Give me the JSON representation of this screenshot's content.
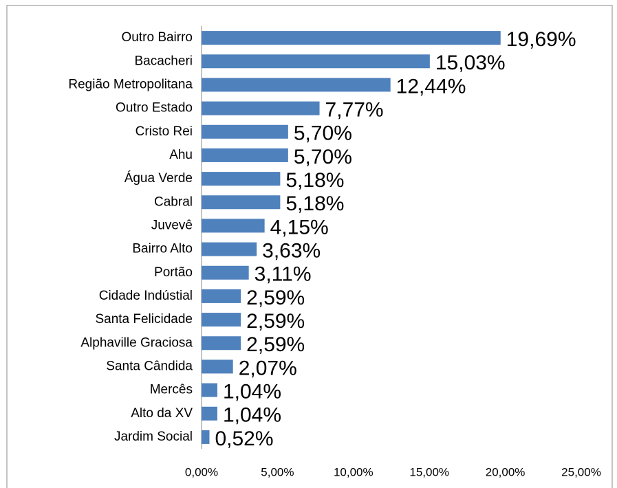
{
  "chart_data": {
    "type": "bar",
    "orientation": "horizontal",
    "color": "#4f81bd",
    "categories": [
      "Outro Bairro",
      "Bacacheri",
      "Região Metropolitana",
      "Outro Estado",
      "Cristo Rei",
      "Ahu",
      "Água Verde",
      "Cabral",
      "Juvevê",
      "Bairro Alto",
      "Portão",
      "Cidade Indústial",
      "Santa Felicidade",
      "Alphaville Graciosa",
      "Santa Cândida",
      "Mercês",
      "Alto da XV",
      "Jardim Social"
    ],
    "values": [
      19.69,
      15.03,
      12.44,
      7.77,
      5.7,
      5.7,
      5.18,
      5.18,
      4.15,
      3.63,
      3.11,
      2.59,
      2.59,
      2.59,
      2.07,
      1.04,
      1.04,
      0.52
    ],
    "value_labels": [
      "19,69%",
      "15,03%",
      "12,44%",
      "7,77%",
      "5,70%",
      "5,70%",
      "5,18%",
      "5,18%",
      "4,15%",
      "3,63%",
      "3,11%",
      "2,59%",
      "2,59%",
      "2,59%",
      "2,07%",
      "1,04%",
      "1,04%",
      "0,52%"
    ],
    "xlim": [
      0,
      25
    ],
    "xticks": [
      {
        "value": 0,
        "label": "0,00%"
      },
      {
        "value": 5,
        "label": "5,00%"
      },
      {
        "value": 10,
        "label": "10,00%"
      },
      {
        "value": 15,
        "label": "15,00%"
      },
      {
        "value": 20,
        "label": "20,00%"
      },
      {
        "value": 25,
        "label": "25,00%"
      }
    ],
    "grid": false
  }
}
